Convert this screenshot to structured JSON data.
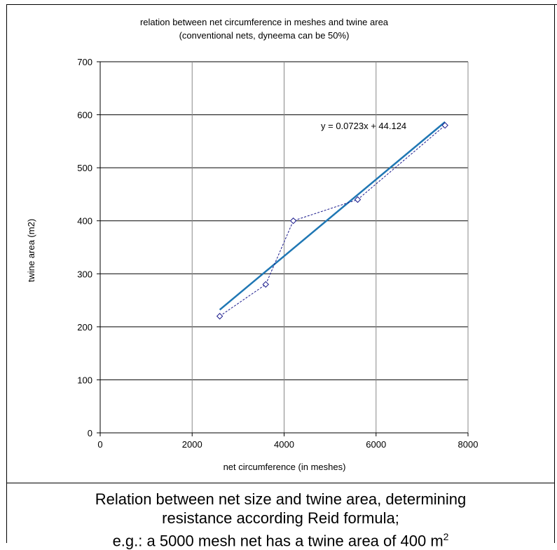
{
  "chart_data": {
    "type": "scatter",
    "title_lines": [
      "relation  between  net circumference  in meshes  and twine area",
      "(conventional  nets, dyneema can be 50%)"
    ],
    "xlabel": "net circumference  (in meshes)",
    "ylabel": "twine area  (m2)",
    "xlim": [
      0,
      8000
    ],
    "ylim": [
      0,
      700
    ],
    "xticks": [
      0,
      2000,
      4000,
      6000,
      8000
    ],
    "yticks": [
      0,
      100,
      200,
      300,
      400,
      500,
      600,
      700
    ],
    "grid": true,
    "series": [
      {
        "x": [
          2600,
          3600,
          4200,
          5600,
          7500
        ],
        "y": [
          220,
          280,
          400,
          440,
          580
        ]
      }
    ],
    "trendline": {
      "type": "linear",
      "slope": 0.0723,
      "intercept": 44.124,
      "x_range": [
        2600,
        7500
      ],
      "label": "y = 0.0723x  + 44.124"
    },
    "colors": {
      "series": "#1a1a8c",
      "trend": "#1f77b4",
      "grid": "#888888"
    }
  },
  "caption": {
    "line1": "Relation between net size and twine area, determining",
    "line2": "resistance according Reid formula;",
    "line3_prefix": "e.g.: a 5000 mesh net has a twine area of 400 m",
    "line3_sup": "2"
  }
}
